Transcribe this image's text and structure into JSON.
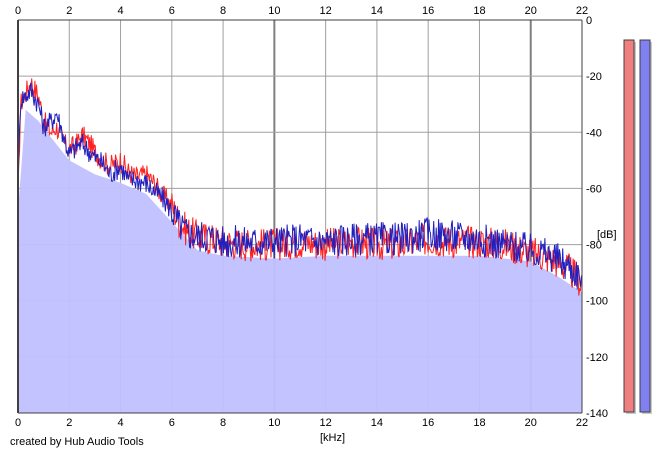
{
  "chart_data": {
    "type": "line",
    "xlabel": "[kHz]",
    "ylabel": "[dB]",
    "xlim": [
      0,
      22
    ],
    "ylim": [
      -140,
      0
    ],
    "x_ticks": [
      0,
      2,
      4,
      6,
      8,
      10,
      12,
      14,
      16,
      18,
      20,
      22
    ],
    "y_ticks": [
      0,
      -20,
      -40,
      -60,
      -80,
      -100,
      -120,
      -140
    ],
    "grid": true,
    "series": [
      {
        "color": "#ff2020",
        "x": [
          0,
          0.1,
          0.3,
          0.5,
          0.8,
          1.0,
          1.3,
          1.5,
          1.8,
          2.0,
          2.3,
          2.5,
          2.8,
          3.0,
          3.3,
          3.6,
          4.0,
          4.3,
          4.6,
          5.0,
          5.3,
          5.6,
          6.0,
          6.3,
          6.6,
          7.0,
          7.5,
          8.0,
          9.0,
          10.0,
          11.0,
          12.0,
          13.0,
          14.0,
          15.0,
          16.0,
          17.0,
          18.0,
          19.0,
          20.0,
          20.5,
          21.0,
          21.5,
          22.0
        ],
        "y": [
          -65,
          -30,
          -26,
          -22,
          -27,
          -36,
          -40,
          -38,
          -44,
          -46,
          -44,
          -41,
          -44,
          -47,
          -50,
          -52,
          -50,
          -54,
          -56,
          -55,
          -58,
          -62,
          -66,
          -72,
          -75,
          -77,
          -78,
          -79,
          -80,
          -80,
          -79,
          -80,
          -79,
          -80,
          -80,
          -78,
          -79,
          -79,
          -80,
          -83,
          -84,
          -86,
          -89,
          -94
        ]
      },
      {
        "color": "#2020c0",
        "x": [
          0,
          0.1,
          0.3,
          0.5,
          0.8,
          1.0,
          1.3,
          1.5,
          1.8,
          2.0,
          2.3,
          2.5,
          2.8,
          3.0,
          3.3,
          3.6,
          4.0,
          4.3,
          4.6,
          5.0,
          5.3,
          5.6,
          6.0,
          6.3,
          6.6,
          7.0,
          7.5,
          8.0,
          9.0,
          10.0,
          11.0,
          12.0,
          13.0,
          14.0,
          15.0,
          16.0,
          17.0,
          18.0,
          19.0,
          20.0,
          20.5,
          21.0,
          21.5,
          22.0
        ],
        "y": [
          -60,
          -28,
          -27,
          -25,
          -30,
          -38,
          -36,
          -33,
          -42,
          -48,
          -45,
          -44,
          -47,
          -49,
          -51,
          -55,
          -52,
          -57,
          -57,
          -58,
          -61,
          -63,
          -68,
          -73,
          -76,
          -77,
          -77,
          -79,
          -79,
          -79,
          -78,
          -79,
          -78,
          -78,
          -78,
          -76,
          -77,
          -78,
          -80,
          -82,
          -83,
          -85,
          -88,
          -92
        ]
      },
      {
        "color": "#c0c0ff",
        "x": [
          0,
          0.3,
          0.8,
          1.3,
          2.0,
          3.0,
          4.0,
          5.0,
          6.0,
          7.0,
          8.0,
          10.0,
          12.0,
          14.0,
          16.0,
          18.0,
          20.0,
          21.0,
          22.0
        ],
        "y": [
          -68,
          -32,
          -36,
          -42,
          -50,
          -55,
          -58,
          -62,
          -72,
          -82,
          -84,
          -85,
          -84,
          -84,
          -84,
          -84,
          -86,
          -91,
          -97
        ]
      }
    ],
    "meters": [
      {
        "color": "#f08080",
        "level": -12
      },
      {
        "color": "#8080f0",
        "level": -12
      }
    ]
  },
  "footer": {
    "credit": "created by Hub Audio Tools"
  }
}
